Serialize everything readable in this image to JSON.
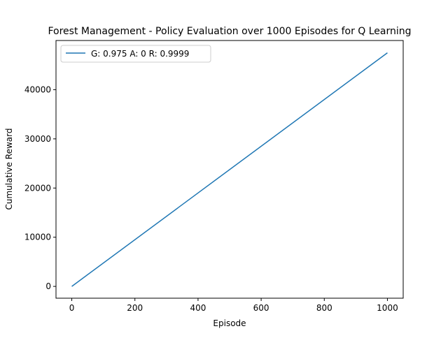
{
  "chart_data": {
    "type": "line",
    "title": "Forest Management - Policy Evaluation over 1000 Episodes for Q Learning",
    "xlabel": "Episode",
    "ylabel": "Cumulative Reward",
    "xlim": [
      -50,
      1050
    ],
    "ylim": [
      -2400,
      50000
    ],
    "xticks": [
      0,
      200,
      400,
      600,
      800,
      1000
    ],
    "yticks": [
      0,
      10000,
      20000,
      30000,
      40000
    ],
    "grid": false,
    "legend_position": "upper-left",
    "series": [
      {
        "name": "G: 0.975 A: 0 R: 0.9999",
        "color": "#1f77b4",
        "x": [
          0,
          1000
        ],
        "y": [
          0,
          47500
        ]
      }
    ]
  }
}
